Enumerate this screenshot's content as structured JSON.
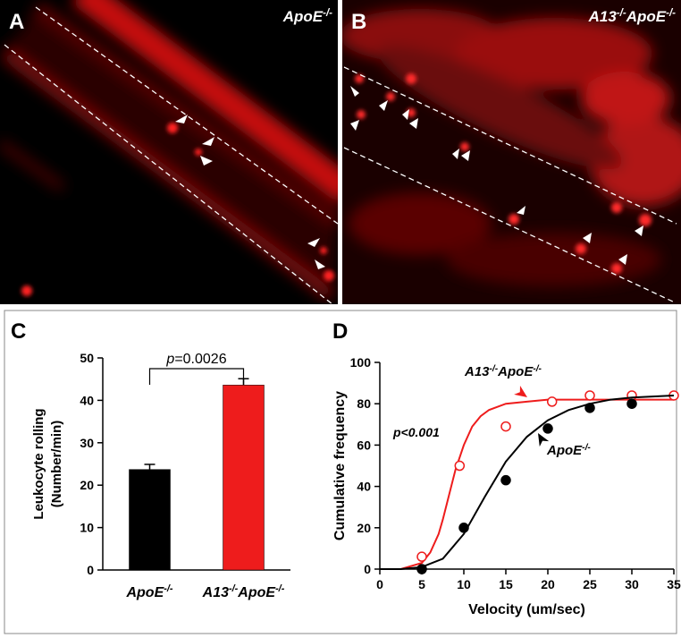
{
  "panels": [
    {
      "letter": "A",
      "label": [
        "ApoE",
        "-/-"
      ]
    },
    {
      "letter": "B",
      "label": [
        "A13",
        "-/-",
        "ApoE",
        "-/-"
      ]
    }
  ],
  "chart_data": [
    {
      "type": "bar",
      "letter": "C",
      "categories": [
        [
          "ApoE",
          "-/-"
        ],
        [
          "A13",
          "-/-",
          "ApoE",
          "-/-"
        ]
      ],
      "values": [
        23.7,
        43.6
      ],
      "errors": [
        1.2,
        1.5
      ],
      "colors": [
        "#000000",
        "#ee1c1c"
      ],
      "ylabel": [
        "Leukocyte rolling",
        "(Number/min)"
      ],
      "ylim": [
        0,
        50
      ],
      "yticks": [
        0,
        10,
        20,
        30,
        40,
        50
      ],
      "annotation": [
        "p",
        "=0.0026"
      ]
    },
    {
      "type": "line",
      "letter": "D",
      "xlabel": "Velocity (um/sec)",
      "ylabel": "Cumulative frequency",
      "annotation": "p<0.001",
      "xlim": [
        0,
        35
      ],
      "ylim": [
        0,
        100
      ],
      "xticks": [
        0,
        5,
        10,
        15,
        20,
        25,
        30,
        35
      ],
      "yticks": [
        0,
        20,
        40,
        60,
        80,
        100
      ],
      "series": [
        {
          "name": [
            "A13",
            "-/-",
            "ApoE",
            "-/-"
          ],
          "color": "#ee1c1c",
          "marker": "open",
          "x": [
            5,
            9.5,
            15,
            20.5,
            25,
            30,
            35
          ],
          "values": [
            6,
            50,
            69,
            81,
            84,
            84,
            84
          ],
          "fit_x": [
            0,
            2.5,
            5,
            6,
            7,
            7.5,
            8,
            9,
            10,
            11,
            12,
            13,
            15,
            17.5,
            20,
            25,
            30,
            35
          ],
          "fit_values": [
            0,
            0,
            3,
            8,
            17,
            24,
            32,
            48,
            60,
            69,
            74,
            77,
            80,
            81,
            82,
            82,
            82,
            82
          ]
        },
        {
          "name": [
            "ApoE",
            "-/-"
          ],
          "color": "#000000",
          "marker": "filled",
          "x": [
            5,
            10,
            15,
            20,
            25,
            30
          ],
          "values": [
            0,
            20,
            43,
            68,
            78,
            80
          ],
          "fit_x": [
            0,
            2.5,
            5,
            7.5,
            10,
            12.5,
            15,
            17.5,
            20,
            22.5,
            25,
            27.5,
            30,
            32.5,
            35
          ],
          "fit_values": [
            0,
            0,
            1,
            5,
            17,
            35,
            52,
            64,
            72,
            77,
            80,
            82,
            83,
            83.5,
            84
          ]
        }
      ]
    }
  ]
}
